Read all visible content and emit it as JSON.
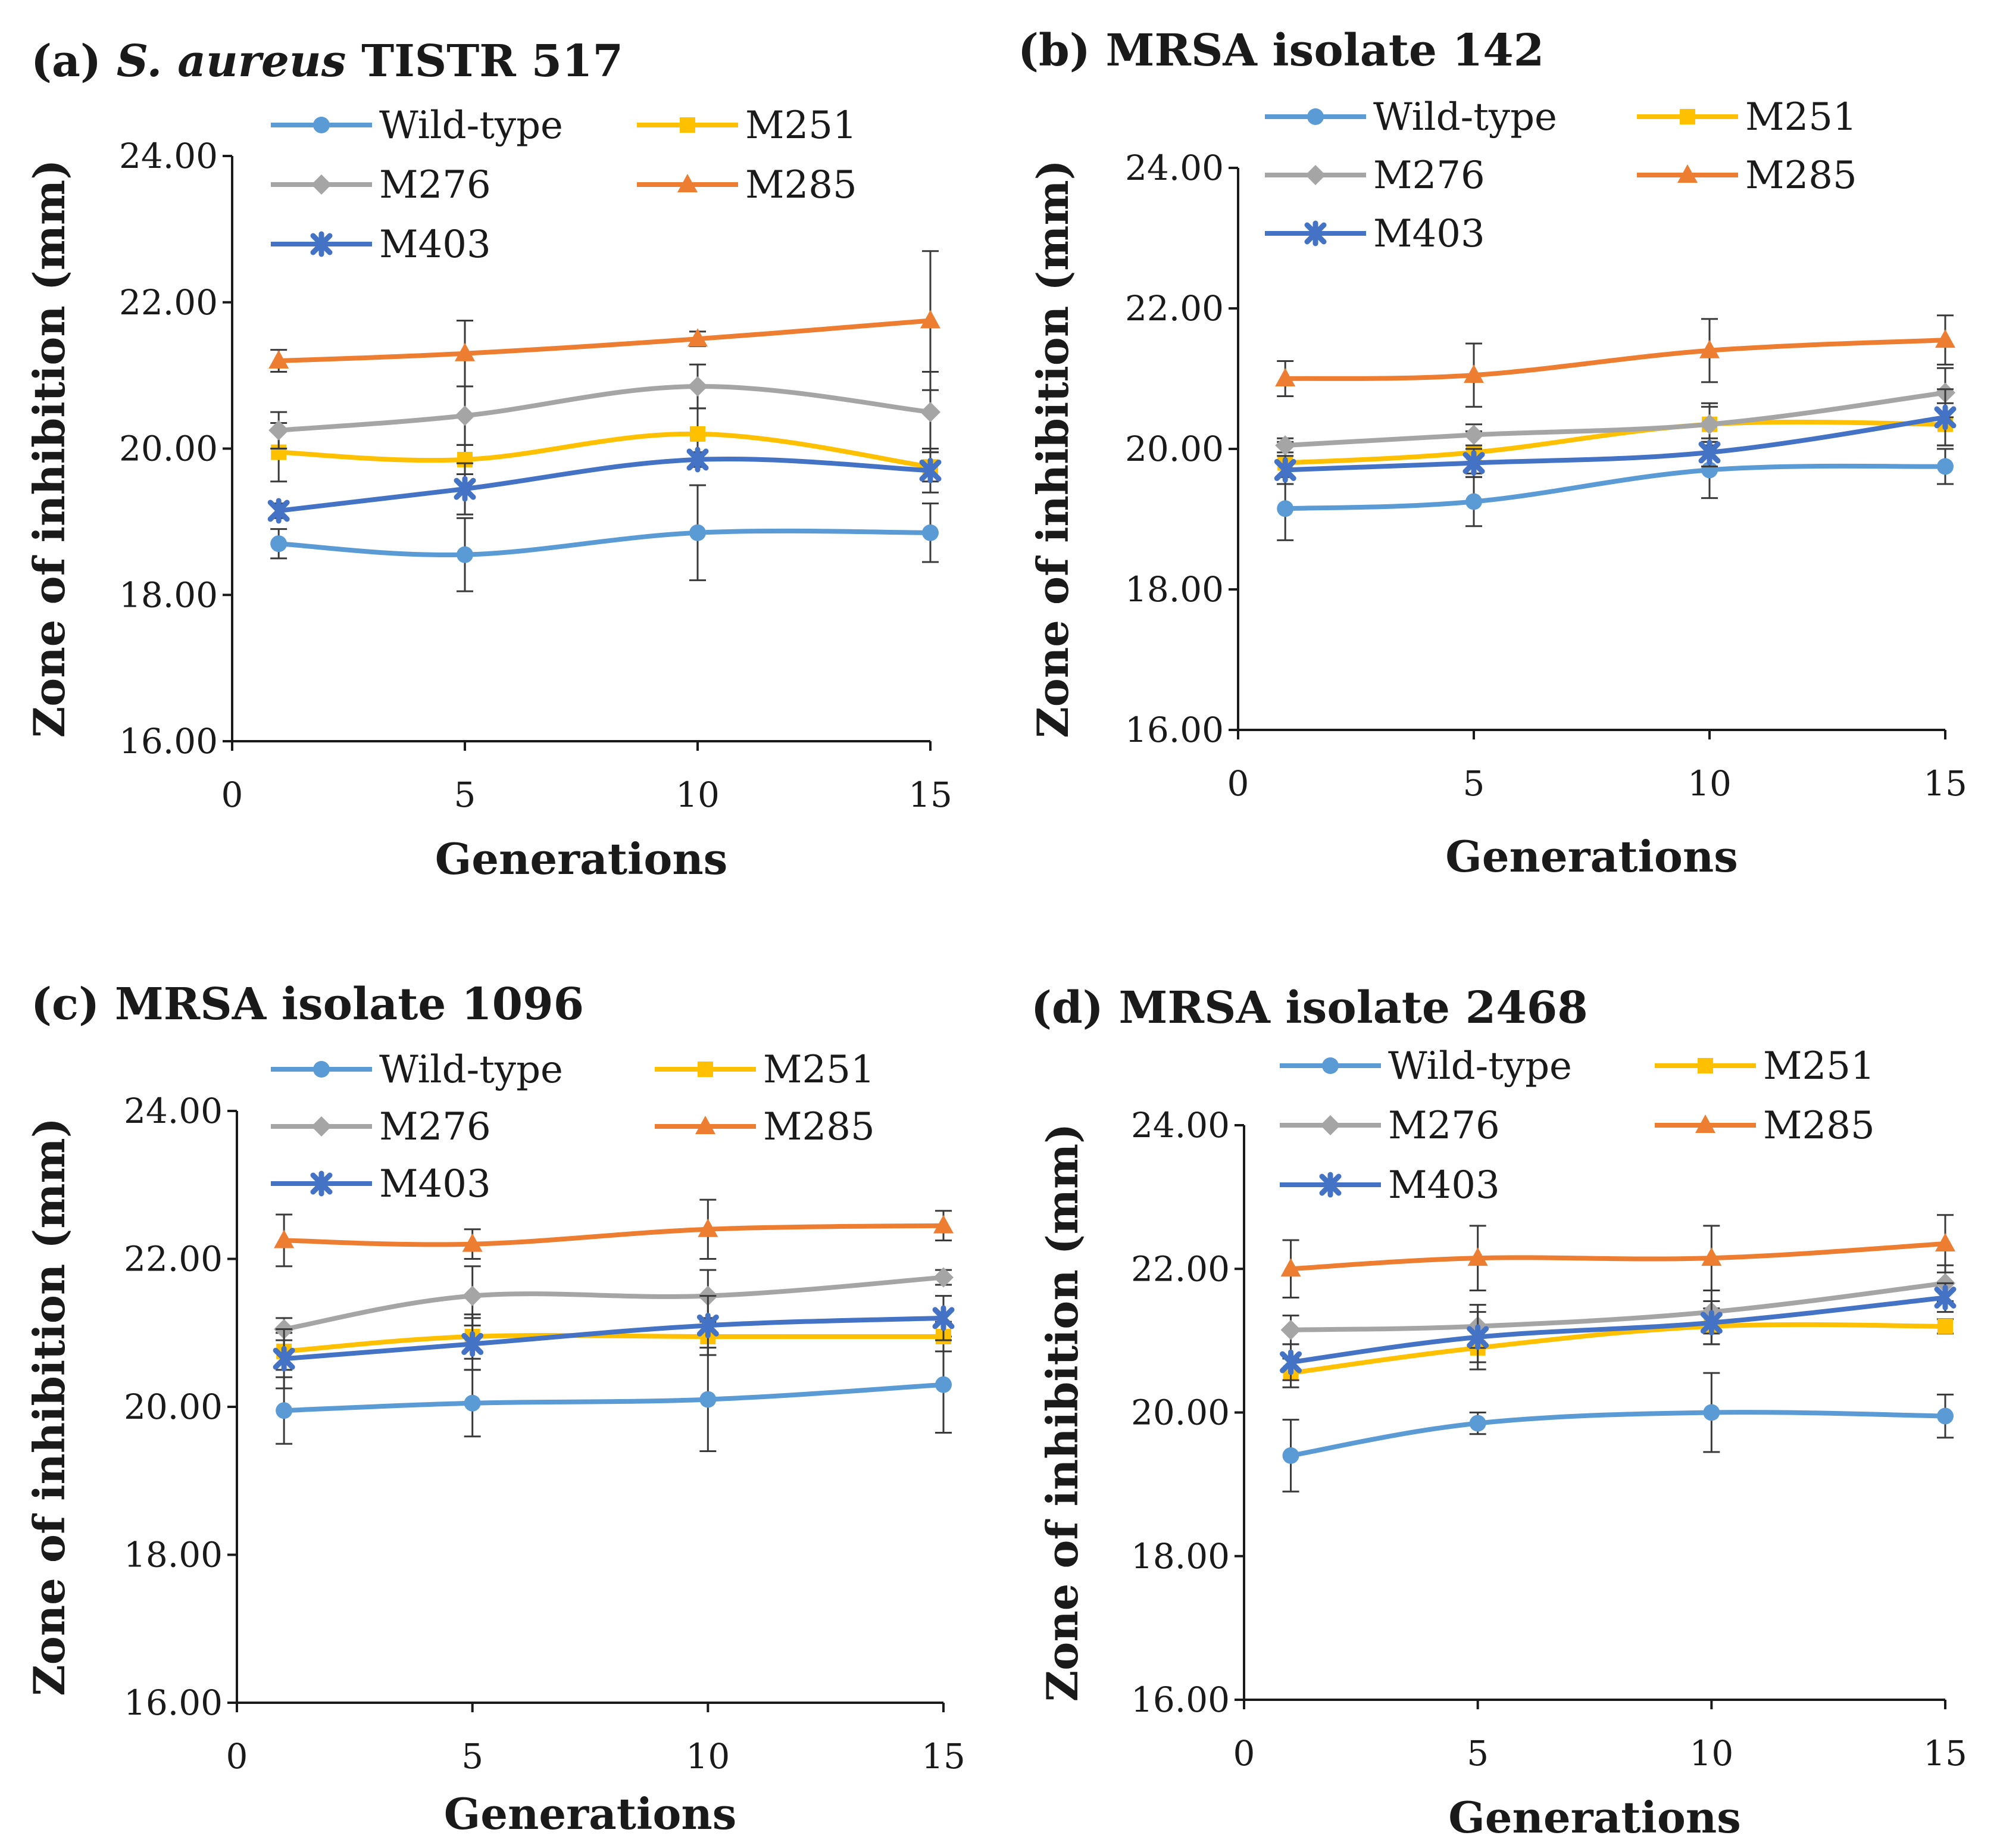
{
  "figure": {
    "colors": {
      "Wild-type": "#5b9bd5",
      "M251": "#ffc000",
      "M276": "#a5a5a5",
      "M285": "#ed7d31",
      "M403": "#4472c4",
      "axis": "#1a1a1a",
      "errorbar": "#3a3a3a"
    },
    "markers": {
      "Wild-type": "circle",
      "M251": "square",
      "M276": "diamond",
      "M285": "triangle",
      "M403": "star"
    }
  },
  "chart_data": [
    {
      "id": "a",
      "type": "line",
      "title_prefix": "(a) ",
      "title_italic": "S. aureus",
      "title_rest": " TISTR 517",
      "xlabel": "Generations",
      "ylabel": "Zone of inhibition (mm)",
      "xlim": [
        0,
        15
      ],
      "ylim": [
        16,
        24
      ],
      "xticks": [
        0,
        5,
        10,
        15
      ],
      "yticks": [
        "16.00",
        "18.00",
        "20.00",
        "22.00",
        "24.00"
      ],
      "x": [
        1,
        5,
        10,
        15
      ],
      "series": [
        {
          "name": "Wild-type",
          "values": [
            18.7,
            18.55,
            18.85,
            18.85
          ],
          "errors": [
            0.2,
            0.5,
            0.65,
            0.4
          ]
        },
        {
          "name": "M251",
          "values": [
            19.95,
            19.85,
            20.2,
            19.75
          ],
          "errors": [
            0.4,
            0.2,
            0.35,
            0.2
          ]
        },
        {
          "name": "M276",
          "values": [
            20.25,
            20.45,
            20.85,
            20.5
          ],
          "errors": [
            0.25,
            0.4,
            0.3,
            0.55
          ]
        },
        {
          "name": "M285",
          "values": [
            21.2,
            21.3,
            21.5,
            21.75
          ],
          "errors": [
            0.15,
            0.45,
            0.1,
            0.95
          ]
        },
        {
          "name": "M403",
          "values": [
            19.15,
            19.45,
            19.85,
            19.7
          ],
          "errors": [
            0.1,
            0.35,
            0.1,
            0.3
          ]
        }
      ]
    },
    {
      "id": "b",
      "type": "line",
      "title_prefix": "(b) ",
      "title_italic": "",
      "title_rest": "MRSA isolate 142",
      "xlabel": "Generations",
      "ylabel": "Zone of inhibition (mm)",
      "xlim": [
        0,
        15
      ],
      "ylim": [
        16,
        24
      ],
      "xticks": [
        0,
        5,
        10,
        15
      ],
      "yticks": [
        "16.00",
        "18.00",
        "20.00",
        "22.00",
        "24.00"
      ],
      "x": [
        1,
        5,
        10,
        15
      ],
      "series": [
        {
          "name": "Wild-type",
          "values": [
            19.15,
            19.25,
            19.7,
            19.75
          ],
          "errors": [
            0.45,
            0.35,
            0.4,
            0.25
          ]
        },
        {
          "name": "M251",
          "values": [
            19.8,
            19.95,
            20.35,
            20.35
          ],
          "errors": [
            0.3,
            0.3,
            0.3,
            0.3
          ]
        },
        {
          "name": "M276",
          "values": [
            20.05,
            20.2,
            20.35,
            20.8
          ],
          "errors": [
            0.1,
            0.15,
            0.25,
            0.35
          ]
        },
        {
          "name": "M285",
          "values": [
            21.0,
            21.05,
            21.4,
            21.55
          ],
          "errors": [
            0.25,
            0.45,
            0.45,
            0.35
          ]
        },
        {
          "name": "M403",
          "values": [
            19.7,
            19.8,
            19.95,
            20.45
          ],
          "errors": [
            0.2,
            0.2,
            0.2,
            0.4
          ]
        }
      ]
    },
    {
      "id": "c",
      "type": "line",
      "title_prefix": "(c) ",
      "title_italic": "",
      "title_rest": "MRSA isolate 1096",
      "xlabel": "Generations",
      "ylabel": "Zone of inhibition (mm)",
      "xlim": [
        0,
        15
      ],
      "ylim": [
        16,
        24
      ],
      "xticks": [
        0,
        5,
        10,
        15
      ],
      "yticks": [
        "16.00",
        "18.00",
        "20.00",
        "22.00",
        "24.00"
      ],
      "x": [
        1,
        5,
        10,
        15
      ],
      "series": [
        {
          "name": "Wild-type",
          "values": [
            19.95,
            20.05,
            20.1,
            20.3
          ],
          "errors": [
            0.45,
            0.45,
            0.7,
            0.65
          ]
        },
        {
          "name": "M251",
          "values": [
            20.75,
            20.95,
            20.95,
            20.95
          ],
          "errors": [
            0.25,
            0.3,
            0.25,
            0.2
          ]
        },
        {
          "name": "M276",
          "values": [
            21.05,
            21.5,
            21.5,
            21.75
          ],
          "errors": [
            0.15,
            0.4,
            0.35,
            0.1
          ]
        },
        {
          "name": "M285",
          "values": [
            22.25,
            22.2,
            22.4,
            22.45
          ],
          "errors": [
            0.35,
            0.2,
            0.4,
            0.2
          ]
        },
        {
          "name": "M403",
          "values": [
            20.65,
            20.85,
            21.1,
            21.2
          ],
          "errors": [
            0.4,
            0.35,
            0.4,
            0.3
          ]
        }
      ]
    },
    {
      "id": "d",
      "type": "line",
      "title_prefix": "(d) ",
      "title_italic": "",
      "title_rest": "MRSA isolate 2468",
      "xlabel": "Generations",
      "ylabel": "Zone of inhibition (mm)",
      "xlim": [
        0,
        15
      ],
      "ylim": [
        16,
        24
      ],
      "xticks": [
        0,
        5,
        10,
        15
      ],
      "yticks": [
        "16.00",
        "18.00",
        "20.00",
        "22.00",
        "24.00"
      ],
      "x": [
        1,
        5,
        10,
        15
      ],
      "series": [
        {
          "name": "Wild-type",
          "values": [
            19.4,
            19.85,
            20.0,
            19.95
          ],
          "errors": [
            0.5,
            0.15,
            0.55,
            0.3
          ]
        },
        {
          "name": "M251",
          "values": [
            20.55,
            20.9,
            21.2,
            21.2
          ],
          "errors": [
            0.2,
            0.3,
            0.25,
            0.1
          ]
        },
        {
          "name": "M276",
          "values": [
            21.15,
            21.2,
            21.4,
            21.8
          ],
          "errors": [
            0.2,
            0.3,
            0.3,
            0.25
          ]
        },
        {
          "name": "M285",
          "values": [
            22.0,
            22.15,
            22.15,
            22.35
          ],
          "errors": [
            0.4,
            0.45,
            0.45,
            0.4
          ]
        },
        {
          "name": "M403",
          "values": [
            20.7,
            21.05,
            21.25,
            21.6
          ],
          "errors": [
            0.25,
            0.35,
            0.3,
            0.2
          ]
        }
      ]
    }
  ]
}
